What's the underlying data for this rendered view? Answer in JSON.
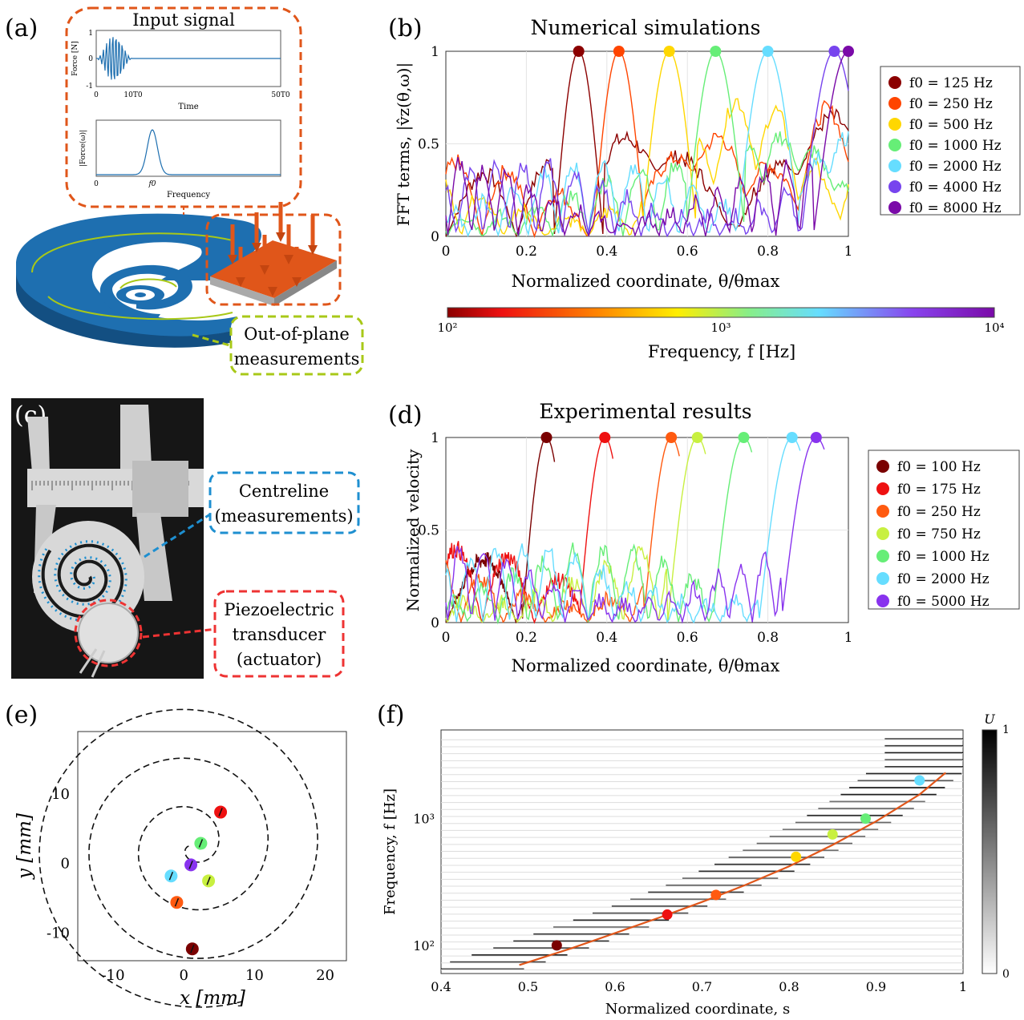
{
  "panels": {
    "a": {
      "label": "(a)",
      "inset_title": "Input signal",
      "force_ylabel": "Force [N]",
      "force_yticks": [
        "1",
        "0",
        "-1"
      ],
      "force_xticks": [
        "0",
        "10T0",
        "50T0"
      ],
      "force_xlabel": "Time",
      "fft_ylabel": "|Force(ω)|",
      "fft_xticks": [
        "0",
        "f0"
      ],
      "fft_xlabel": "Frequency",
      "callout_text": [
        "Out-of-plane",
        "measurements"
      ]
    },
    "b": {
      "label": "(b)",
      "title": "Numerical simulations",
      "ylabel": "FFT terms, |v̂z(θ,ω)|",
      "xlabel": "Normalized coordinate, θ/θmax",
      "xticks": [
        "0",
        "0.2",
        "0.4",
        "0.6",
        "0.8",
        "1"
      ],
      "yticks": [
        "0",
        "0.5",
        "1"
      ],
      "legend": [
        "f0 = 125 Hz",
        "f0 = 250 Hz",
        "f0 = 500 Hz",
        "f0 = 1000 Hz",
        "f0 = 2000 Hz",
        "f0 = 4000 Hz",
        "f0 = 8000 Hz"
      ],
      "colorbar_ticks": [
        "10²",
        "10³",
        "10⁴"
      ],
      "colorbar_label": "Frequency, f [Hz]"
    },
    "c": {
      "label": "(c)",
      "callout_centreline": [
        "Centreline",
        "(measurements)"
      ],
      "callout_piezo": [
        "Piezoelectric",
        "transducer",
        "(actuator)"
      ]
    },
    "d": {
      "label": "(d)",
      "title": "Experimental results",
      "ylabel": "Normalized velocity",
      "xlabel": "Normalized coordinate, θ/θmax",
      "xticks": [
        "0",
        "0.2",
        "0.4",
        "0.6",
        "0.8",
        "1"
      ],
      "yticks": [
        "0",
        "0.5",
        "1"
      ],
      "legend": [
        "f0 = 100 Hz",
        "f0 = 175 Hz",
        "f0 = 250 Hz",
        "f0 = 750 Hz",
        "f0 = 1000 Hz",
        "f0 = 2000 Hz",
        "f0 = 5000 Hz"
      ]
    },
    "e": {
      "label": "(e)",
      "xlabel": "x [mm]",
      "ylabel": "y [mm]",
      "xticks": [
        "-10",
        "0",
        "10",
        "20"
      ],
      "yticks": [
        "10",
        "0",
        "-10"
      ]
    },
    "f": {
      "label": "(f)",
      "xlabel": "Normalized coordinate, s",
      "ylabel": "Frequency, f [Hz]",
      "xticks": [
        "0.4",
        "0.5",
        "0.6",
        "0.7",
        "0.8",
        "0.9",
        "1"
      ],
      "yticks": [
        "10²",
        "10³"
      ],
      "colorbar_label": "U",
      "colorbar_ticks": [
        "1",
        "0"
      ]
    }
  },
  "colors": {
    "f125": "#8b0000",
    "f250": "#ff4500",
    "f500": "#ffd700",
    "f1000": "#66ee77",
    "f2000": "#66ddff",
    "f4000": "#7744ee",
    "f8000": "#7a0aa8",
    "e100": "#7a0000",
    "e175": "#ee1111",
    "e250": "#ff5a10",
    "e750": "#c8f040",
    "e1000": "#66ee77",
    "e2000": "#66ddff",
    "e5000": "#8833ee",
    "spiral_blue": "#1e6fb0",
    "accent_orange": "#e0561a",
    "accent_green": "#a8c818"
  },
  "chart_data": [
    {
      "type": "line",
      "title": "Numerical simulations",
      "xlabel": "Normalized coordinate, θ/θmax",
      "ylabel": "FFT terms, |v̂z(θ,ω)|",
      "xlim": [
        0,
        1
      ],
      "ylim": [
        0,
        1
      ],
      "peaks": [
        {
          "name": "f0 = 125 Hz",
          "x": 0.33,
          "y": 1
        },
        {
          "name": "f0 = 250 Hz",
          "x": 0.43,
          "y": 1
        },
        {
          "name": "f0 = 500 Hz",
          "x": 0.555,
          "y": 1
        },
        {
          "name": "f0 = 1000 Hz",
          "x": 0.67,
          "y": 1
        },
        {
          "name": "f0 = 2000 Hz",
          "x": 0.8,
          "y": 1
        },
        {
          "name": "f0 = 4000 Hz",
          "x": 0.965,
          "y": 1
        },
        {
          "name": "f0 = 8000 Hz",
          "x": 1.0,
          "y": 1
        }
      ]
    },
    {
      "type": "line",
      "title": "Experimental results",
      "xlabel": "Normalized coordinate, θ/θmax",
      "ylabel": "Normalized velocity",
      "xlim": [
        0,
        1
      ],
      "ylim": [
        0,
        1
      ],
      "peaks": [
        {
          "name": "f0 = 100 Hz",
          "x": 0.25,
          "y": 1
        },
        {
          "name": "f0 = 175 Hz",
          "x": 0.395,
          "y": 1
        },
        {
          "name": "f0 = 250 Hz",
          "x": 0.56,
          "y": 1
        },
        {
          "name": "f0 = 750 Hz",
          "x": 0.625,
          "y": 1
        },
        {
          "name": "f0 = 1000 Hz",
          "x": 0.74,
          "y": 1
        },
        {
          "name": "f0 = 2000 Hz",
          "x": 0.86,
          "y": 1
        },
        {
          "name": "f0 = 5000 Hz",
          "x": 0.92,
          "y": 1
        }
      ]
    },
    {
      "type": "scatter",
      "xlabel": "x [mm]",
      "ylabel": "y [mm]",
      "xlim": [
        -15,
        23
      ],
      "ylim": [
        -14,
        19
      ],
      "points": [
        {
          "x": 5.2,
          "y": 7.4,
          "color": "e175"
        },
        {
          "x": 2.4,
          "y": 2.9,
          "color": "e1000"
        },
        {
          "x": 1.0,
          "y": -0.2,
          "color": "e5000"
        },
        {
          "x": -1.8,
          "y": -1.8,
          "color": "e2000"
        },
        {
          "x": 3.5,
          "y": -2.5,
          "color": "e750"
        },
        {
          "x": -1.0,
          "y": -5.6,
          "color": "e250"
        },
        {
          "x": 1.2,
          "y": -12.3,
          "color": "e100"
        }
      ]
    },
    {
      "type": "heatmap",
      "xlabel": "Normalized coordinate, s",
      "ylabel": "Frequency, f [Hz]",
      "xlim": [
        0.4,
        1
      ],
      "ylim_log": [
        60,
        5000
      ],
      "markers": [
        {
          "s": 0.533,
          "f": 100,
          "color": "e100"
        },
        {
          "s": 0.66,
          "f": 175,
          "color": "e175"
        },
        {
          "s": 0.716,
          "f": 250,
          "color": "e250"
        },
        {
          "s": 0.808,
          "f": 500,
          "color": "f500"
        },
        {
          "s": 0.85,
          "f": 750,
          "color": "e750"
        },
        {
          "s": 0.888,
          "f": 1000,
          "color": "e1000"
        },
        {
          "s": 0.95,
          "f": 2000,
          "color": "e2000"
        }
      ],
      "fit_curve": {
        "s": [
          0.49,
          0.55,
          0.6,
          0.65,
          0.7,
          0.75,
          0.8,
          0.85,
          0.9,
          0.95,
          0.98
        ],
        "f": [
          70,
          95,
          125,
          165,
          220,
          300,
          420,
          620,
          950,
          1550,
          2300
        ]
      }
    }
  ]
}
